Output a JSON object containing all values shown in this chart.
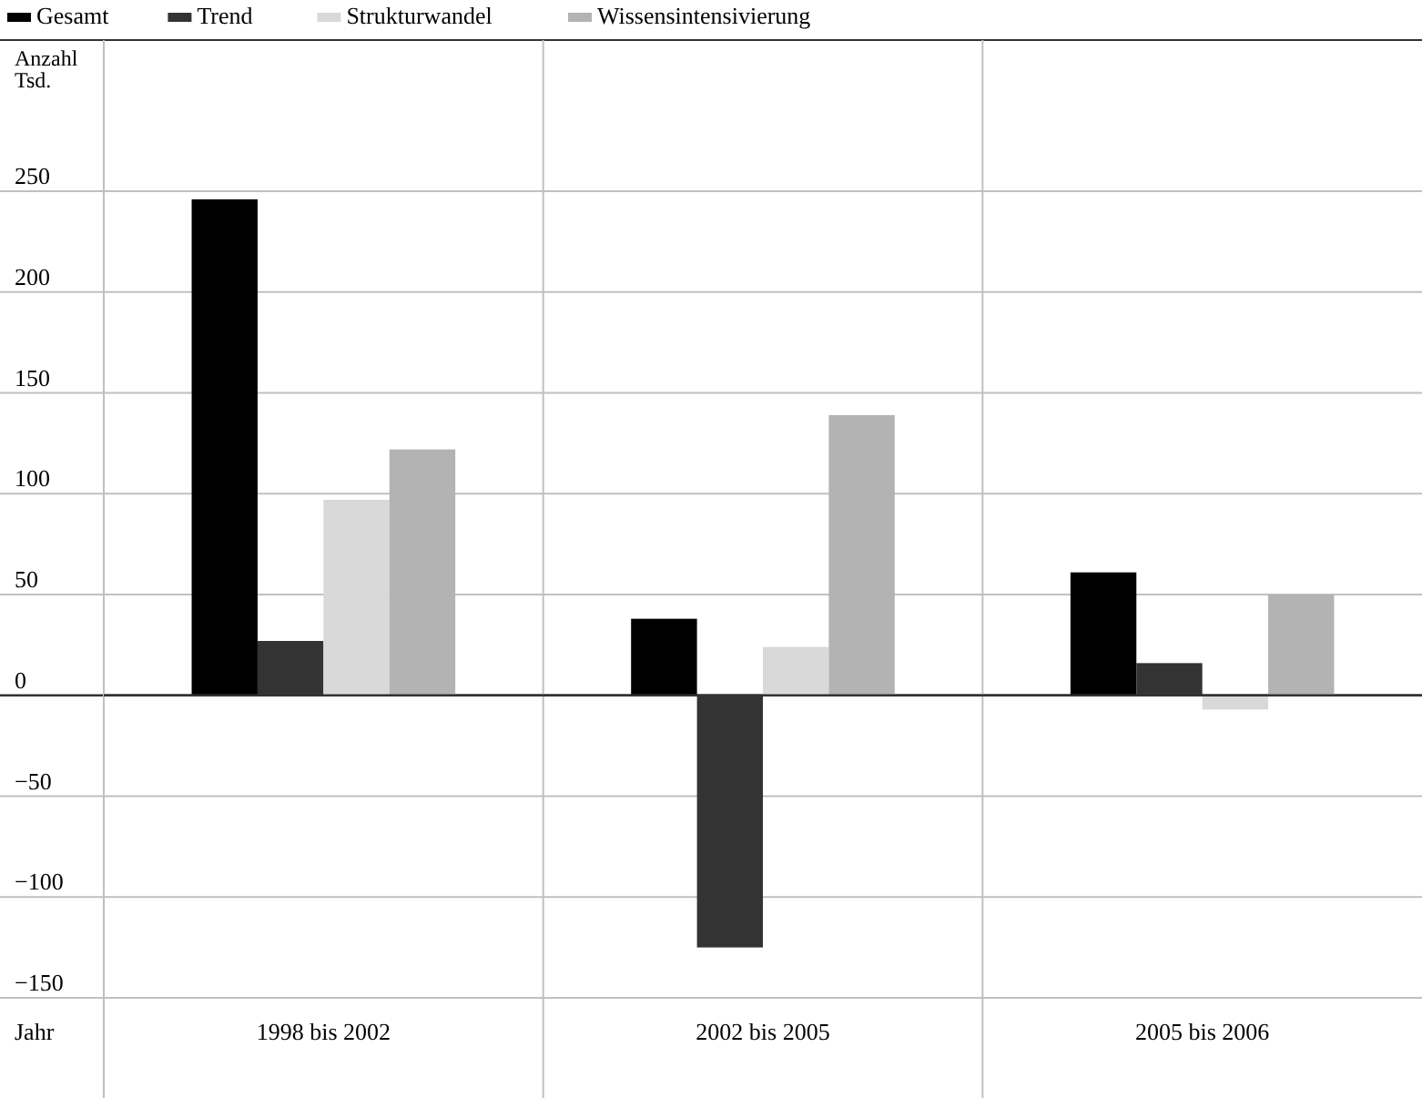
{
  "chart_data": {
    "type": "bar",
    "xlabel": "Jahr",
    "ylabel": "Anzahl Tsd.",
    "categories": [
      "1998 bis 2002",
      "2002 bis 2005",
      "2005 bis 2006"
    ],
    "series": [
      {
        "name": "Gesamt",
        "color": "#000000",
        "values": [
          246,
          38,
          61
        ]
      },
      {
        "name": "Trend",
        "color": "#333333",
        "values": [
          27,
          -125,
          16
        ]
      },
      {
        "name": "Strukturwandel",
        "color": "#d9d9d9",
        "values": [
          97,
          24,
          -7
        ]
      },
      {
        "name": "Wissensintensivierung",
        "color": "#b3b3b3",
        "values": [
          122,
          139,
          50
        ]
      }
    ],
    "ylim": [
      -150,
      325
    ],
    "yticks": [
      -150,
      -100,
      -50,
      0,
      50,
      100,
      150,
      200,
      250
    ],
    "grid": true,
    "legend": "top left"
  }
}
